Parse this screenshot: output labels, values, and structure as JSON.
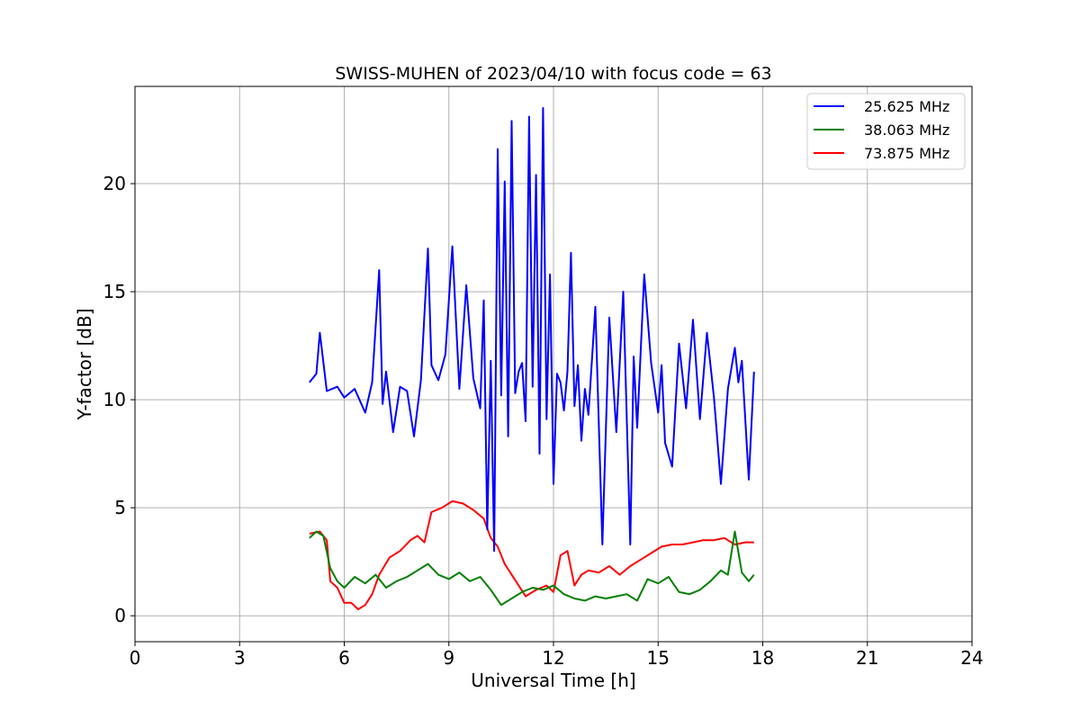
{
  "chart_data": {
    "type": "line",
    "title": "SWISS-MUHEN of 2023/04/10 with focus code = 63",
    "xlabel": "Universal Time [h]",
    "ylabel": "Y-factor [dB]",
    "xlim": [
      0,
      24
    ],
    "ylim": [
      -1.2,
      24.5
    ],
    "xticks": [
      0,
      3,
      6,
      9,
      12,
      15,
      18,
      21,
      24
    ],
    "yticks": [
      0,
      5,
      10,
      15,
      20
    ],
    "grid": true,
    "legend_position": "top-right",
    "series": [
      {
        "name": "25.625 MHz",
        "color": "#0000ff",
        "x": [
          5.0,
          5.2,
          5.3,
          5.5,
          5.8,
          6.0,
          6.3,
          6.6,
          6.8,
          7.0,
          7.1,
          7.2,
          7.4,
          7.6,
          7.8,
          8.0,
          8.2,
          8.4,
          8.5,
          8.7,
          8.9,
          9.1,
          9.3,
          9.5,
          9.7,
          9.9,
          10.0,
          10.1,
          10.2,
          10.3,
          10.4,
          10.5,
          10.6,
          10.7,
          10.8,
          10.9,
          11.0,
          11.1,
          11.2,
          11.3,
          11.4,
          11.5,
          11.6,
          11.7,
          11.8,
          11.9,
          12.0,
          12.1,
          12.2,
          12.3,
          12.4,
          12.5,
          12.6,
          12.7,
          12.8,
          12.9,
          13.0,
          13.2,
          13.4,
          13.6,
          13.8,
          14.0,
          14.2,
          14.3,
          14.4,
          14.6,
          14.8,
          15.0,
          15.1,
          15.2,
          15.4,
          15.6,
          15.8,
          16.0,
          16.2,
          16.4,
          16.6,
          16.8,
          17.0,
          17.2,
          17.3,
          17.4,
          17.6,
          17.75
        ],
        "y": [
          10.8,
          11.2,
          13.1,
          10.4,
          10.6,
          10.1,
          10.5,
          9.4,
          10.8,
          16.0,
          9.8,
          11.3,
          8.5,
          10.6,
          10.4,
          8.3,
          10.9,
          17.0,
          11.6,
          10.9,
          12.1,
          17.1,
          10.5,
          15.3,
          11.0,
          9.6,
          14.6,
          4.0,
          11.8,
          3.0,
          21.6,
          10.2,
          20.1,
          8.3,
          22.9,
          10.3,
          11.3,
          11.7,
          9.0,
          23.1,
          10.6,
          20.4,
          7.5,
          23.5,
          9.1,
          15.8,
          6.1,
          11.2,
          10.8,
          9.5,
          11.3,
          16.8,
          9.7,
          11.6,
          8.1,
          10.5,
          9.3,
          14.3,
          3.3,
          13.8,
          8.5,
          15.0,
          3.3,
          12.0,
          8.7,
          15.8,
          11.7,
          9.4,
          11.6,
          8.0,
          6.9,
          12.6,
          9.6,
          13.7,
          9.1,
          13.1,
          10.1,
          6.1,
          10.5,
          12.4,
          10.8,
          11.8,
          6.3,
          11.3
        ]
      },
      {
        "name": "38.063 MHz",
        "color": "#008000",
        "x": [
          5.0,
          5.2,
          5.4,
          5.6,
          5.8,
          6.0,
          6.3,
          6.6,
          6.9,
          7.2,
          7.5,
          7.8,
          8.1,
          8.4,
          8.7,
          9.0,
          9.3,
          9.6,
          9.9,
          10.2,
          10.5,
          10.8,
          11.1,
          11.4,
          11.7,
          12.0,
          12.3,
          12.6,
          12.9,
          13.2,
          13.5,
          13.8,
          14.1,
          14.4,
          14.7,
          15.0,
          15.3,
          15.6,
          15.9,
          16.2,
          16.5,
          16.8,
          17.0,
          17.2,
          17.4,
          17.6,
          17.75
        ],
        "y": [
          3.6,
          3.9,
          3.7,
          2.2,
          1.6,
          1.3,
          1.8,
          1.5,
          1.9,
          1.3,
          1.6,
          1.8,
          2.1,
          2.4,
          1.9,
          1.7,
          2.0,
          1.6,
          1.8,
          1.2,
          0.5,
          0.8,
          1.1,
          1.3,
          1.2,
          1.4,
          1.0,
          0.8,
          0.7,
          0.9,
          0.8,
          0.9,
          1.0,
          0.7,
          1.7,
          1.5,
          1.8,
          1.1,
          1.0,
          1.2,
          1.6,
          2.1,
          1.9,
          3.9,
          2.0,
          1.6,
          1.9
        ]
      },
      {
        "name": "73.875 MHz",
        "color": "#ff0000",
        "x": [
          5.0,
          5.3,
          5.5,
          5.6,
          5.8,
          6.0,
          6.2,
          6.4,
          6.6,
          6.8,
          7.0,
          7.3,
          7.6,
          7.9,
          8.1,
          8.3,
          8.5,
          8.8,
          9.1,
          9.4,
          9.7,
          10.0,
          10.2,
          10.4,
          10.6,
          10.8,
          11.0,
          11.2,
          11.5,
          11.8,
          12.0,
          12.2,
          12.4,
          12.6,
          12.8,
          13.0,
          13.3,
          13.6,
          13.9,
          14.2,
          14.5,
          14.8,
          15.1,
          15.4,
          15.7,
          16.0,
          16.3,
          16.6,
          16.9,
          17.2,
          17.5,
          17.75
        ],
        "y": [
          3.8,
          3.9,
          3.5,
          1.6,
          1.3,
          0.6,
          0.6,
          0.3,
          0.5,
          1.0,
          1.9,
          2.7,
          3.0,
          3.5,
          3.7,
          3.4,
          4.8,
          5.0,
          5.3,
          5.2,
          4.9,
          4.5,
          3.6,
          3.2,
          2.4,
          1.9,
          1.4,
          0.9,
          1.2,
          1.4,
          1.1,
          2.8,
          3.0,
          1.4,
          1.9,
          2.1,
          2.0,
          2.3,
          1.9,
          2.3,
          2.6,
          2.9,
          3.2,
          3.3,
          3.3,
          3.4,
          3.5,
          3.5,
          3.6,
          3.3,
          3.4,
          3.4
        ]
      }
    ]
  }
}
